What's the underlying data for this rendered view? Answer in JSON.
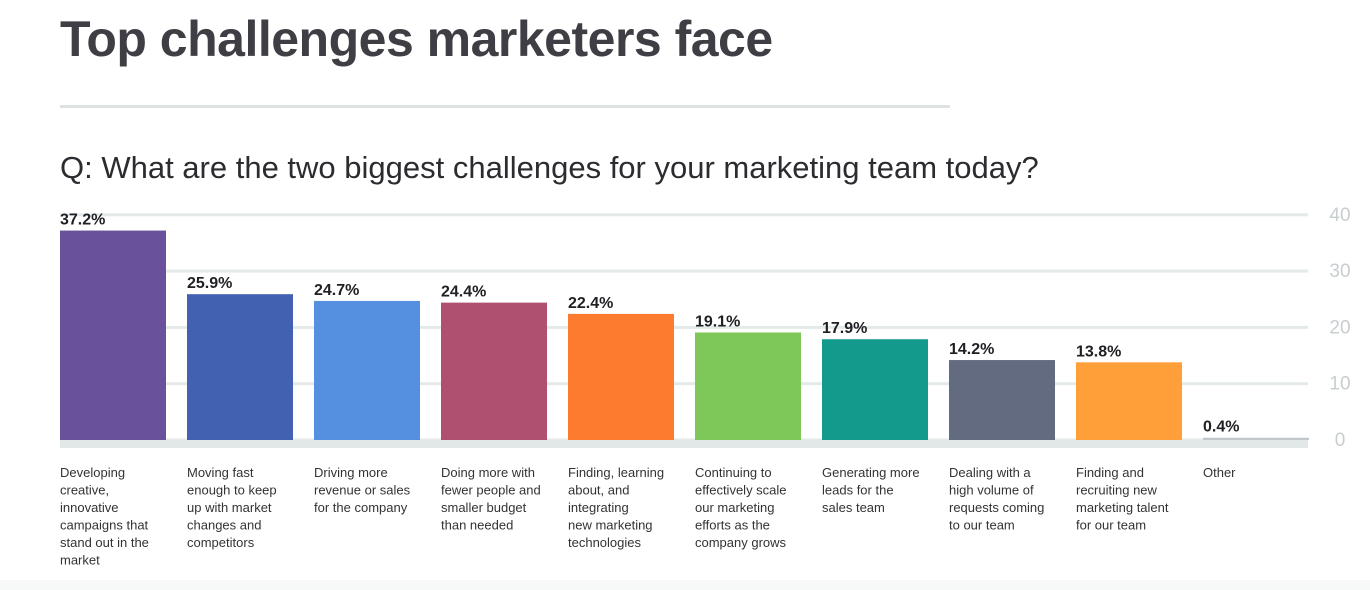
{
  "title": "Top challenges marketers face",
  "question": "Q: What are the two biggest challenges for your marketing team today?",
  "chart_data": {
    "type": "bar",
    "ylim": [
      0,
      40
    ],
    "yticks": [
      "0",
      "10",
      "20",
      "30",
      "40"
    ],
    "grid": true,
    "categories": [
      [
        "Developing",
        "creative,",
        "innovative",
        "campaigns that",
        "stand out in the",
        "market"
      ],
      [
        "Moving fast",
        "enough to keep",
        "up with market",
        "changes and",
        "competitors"
      ],
      [
        "Driving more",
        "revenue or sales",
        "for the company"
      ],
      [
        "Doing more with",
        "fewer people and",
        "smaller budget",
        "than needed"
      ],
      [
        "Finding, learning",
        "about, and",
        "integrating",
        "new marketing",
        "technologies"
      ],
      [
        "Continuing to",
        "effectively scale",
        "our marketing",
        "efforts as the",
        "company grows"
      ],
      [
        "Generating more",
        "leads for the",
        "sales team"
      ],
      [
        "Dealing with a",
        "high volume of",
        "requests coming",
        "to our team"
      ],
      [
        "Finding and",
        "recruiting new",
        "marketing talent",
        "for our team"
      ],
      [
        "Other"
      ]
    ],
    "values": [
      37.2,
      25.9,
      24.7,
      24.4,
      22.4,
      19.1,
      17.9,
      14.2,
      13.8,
      0.4
    ],
    "data_labels": [
      "37.2%",
      "25.9%",
      "24.7%",
      "24.4%",
      "22.4%",
      "19.1%",
      "17.9%",
      "14.2%",
      "13.8%",
      "0.4%"
    ],
    "colors": [
      "#6a519b",
      "#4261b0",
      "#5590e0",
      "#b05070",
      "#fd7b2e",
      "#7ec85a",
      "#139a8c",
      "#636b80",
      "#fe9f3a",
      "#c2c7cc"
    ]
  }
}
